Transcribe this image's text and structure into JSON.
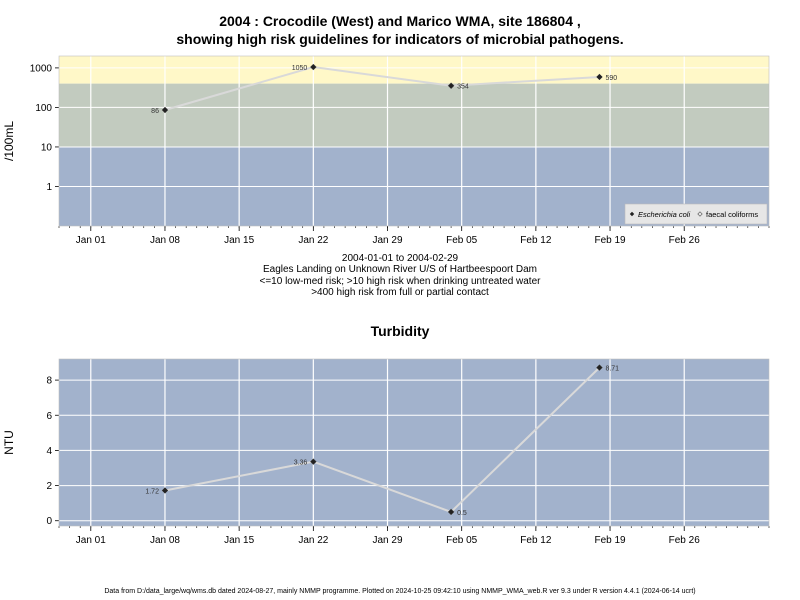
{
  "title_line1": "2004 : Crocodile (West) and Marico WMA, site 186804 ,",
  "title_line2": "showing high risk guidelines for indicators of microbial pathogens.",
  "subtitle_lines": [
    "2004-01-01 to 2004-02-29",
    "Eagles Landing on Unknown River U/S of Hartbeespoort Dam",
    "<=10 low-med risk; >10 high risk when drinking untreated water",
    ">400 high risk from full or partial contact"
  ],
  "footer": "Data from D:/data_large/wq/wms.db dated 2024-08-27, mainly NMMP programme. Plotted on 2024-10-25 09:42:10 using NMMP_WMA_web.R ver 9.3 under R version 4.4.1 (2024-06-14 ucrt)",
  "colors": {
    "band_high_contact": "#fff8c8",
    "band_high_drink": "#c2cbbf",
    "band_low": "#a2b2cc",
    "grid": "#ffffff",
    "line": "#d9d9d9",
    "marker": "#222222"
  },
  "chart_data": [
    {
      "type": "line",
      "title": "",
      "ylabel": "/100mL",
      "y_scale": "log",
      "ylim": [
        0.1,
        2000
      ],
      "y_ticks": [
        1,
        10,
        100,
        1000
      ],
      "y_tick_labels": [
        "1",
        "10",
        "100",
        "1000"
      ],
      "x_ticks": [
        "2004-01-01",
        "2004-01-08",
        "2004-01-15",
        "2004-01-22",
        "2004-01-29",
        "2004-02-05",
        "2004-02-12",
        "2004-02-19",
        "2004-02-26"
      ],
      "x_tick_labels": [
        "Jan 01",
        "Jan 08",
        "Jan 15",
        "Jan 22",
        "Jan 29",
        "Feb 05",
        "Feb 12",
        "Feb 19",
        "Feb 26"
      ],
      "xlim": [
        "2003-12-29",
        "2004-03-05"
      ],
      "guideline_bands": [
        {
          "from": 400,
          "to": 2000,
          "color": "#fff8c8"
        },
        {
          "from": 10,
          "to": 400,
          "color": "#c2cbbf"
        },
        {
          "from": 0.1,
          "to": 10,
          "color": "#a2b2cc"
        }
      ],
      "legend": {
        "position": "bottom-right",
        "entries": [
          "Escherichia coli",
          "faecal coliforms"
        ]
      },
      "series": [
        {
          "name": "Escherichia coli",
          "x": [
            "2004-01-08",
            "2004-01-22",
            "2004-02-04",
            "2004-02-18"
          ],
          "y": [
            86,
            1050,
            354,
            590
          ],
          "labels": [
            "86",
            "1050",
            "354",
            "590"
          ]
        }
      ]
    },
    {
      "type": "line",
      "title": "Turbidity",
      "ylabel": "NTU",
      "y_scale": "linear",
      "ylim": [
        -0.3,
        9.2
      ],
      "y_ticks": [
        0,
        2,
        4,
        6,
        8
      ],
      "y_tick_labels": [
        "0",
        "2",
        "4",
        "6",
        "8"
      ],
      "x_ticks": [
        "2004-01-01",
        "2004-01-08",
        "2004-01-15",
        "2004-01-22",
        "2004-01-29",
        "2004-02-05",
        "2004-02-12",
        "2004-02-19",
        "2004-02-26"
      ],
      "x_tick_labels": [
        "Jan 01",
        "Jan 08",
        "Jan 15",
        "Jan 22",
        "Jan 29",
        "Feb 05",
        "Feb 12",
        "Feb 19",
        "Feb 26"
      ],
      "xlim": [
        "2003-12-29",
        "2004-03-05"
      ],
      "series": [
        {
          "x": [
            "2004-01-08",
            "2004-01-22",
            "2004-02-04",
            "2004-02-18"
          ],
          "y": [
            1.72,
            3.36,
            0.5,
            8.71
          ],
          "labels": [
            "1.72",
            "3.36",
            "0.5",
            "8.71"
          ]
        }
      ]
    }
  ]
}
